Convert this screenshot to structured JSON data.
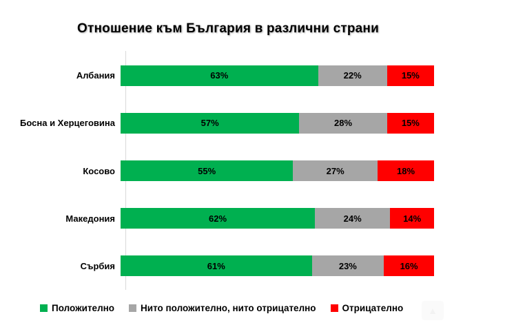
{
  "title": "Отношение към България в различни страни",
  "chart_data": {
    "type": "bar",
    "orientation": "horizontal",
    "stacked": true,
    "title": "Отношение към България в различни страни",
    "categories": [
      "Албания",
      "Босна и Херцеговина",
      "Косово",
      "Македония",
      "Сърбия"
    ],
    "series": [
      {
        "name": "Положително",
        "color": "#00B050",
        "values": [
          63,
          57,
          55,
          62,
          61
        ]
      },
      {
        "name": "Нито положително, нито отрицателно",
        "color": "#A6A6A6",
        "values": [
          22,
          28,
          27,
          24,
          23
        ]
      },
      {
        "name": "Отрицателно",
        "color": "#FF0000",
        "values": [
          15,
          15,
          18,
          14,
          16
        ]
      }
    ],
    "xlabel": "",
    "ylabel": "",
    "xlim": [
      0,
      100
    ],
    "value_suffix": "%",
    "data_labels": true,
    "grid": false,
    "legend_position": "bottom",
    "axis_line_color": "#D9D9D9",
    "label_color": "#000000"
  },
  "legend": {
    "items": [
      {
        "label": "Положително",
        "color": "#00B050"
      },
      {
        "label": "Нито положително, нито отрицателно",
        "color": "#A6A6A6"
      },
      {
        "label": "Отрицателно",
        "color": "#FF0000"
      }
    ]
  }
}
